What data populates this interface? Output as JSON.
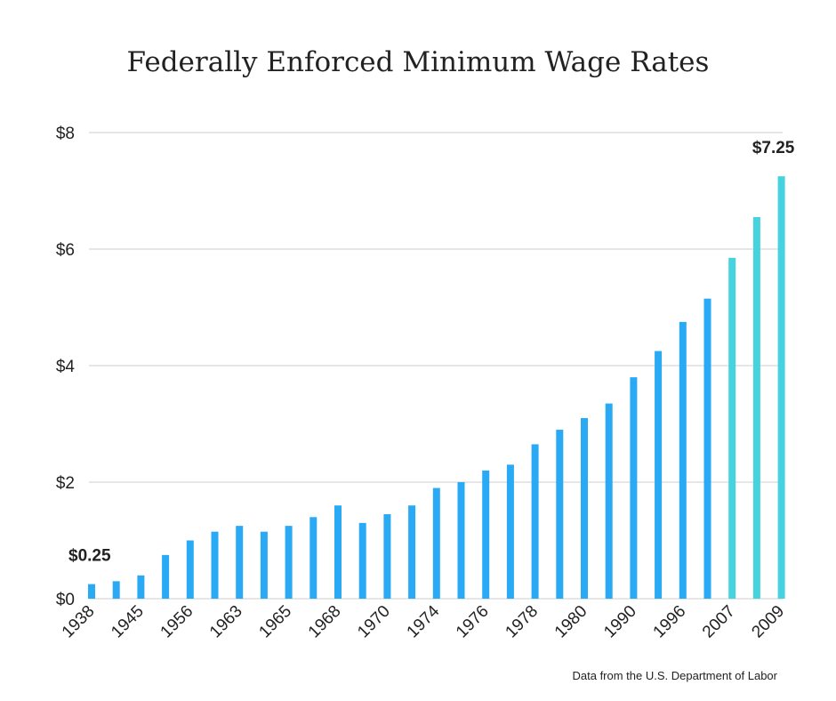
{
  "chart_data": {
    "type": "bar",
    "title": "Federally Enforced Minimum Wage Rates",
    "xlabel": "",
    "ylabel": "",
    "ylim": [
      0,
      8
    ],
    "y_ticks": [
      0,
      2,
      4,
      6,
      8
    ],
    "y_tick_labels": [
      "$0",
      "$2",
      "$4",
      "$6",
      "$8"
    ],
    "x_tick_labels": [
      "1938",
      "1945",
      "1956",
      "1963",
      "1965",
      "1968",
      "1970",
      "1974",
      "1976",
      "1978",
      "1980",
      "1990",
      "1996",
      "2007",
      "2009"
    ],
    "x_tick_every": 2,
    "values": [
      0.25,
      0.3,
      0.4,
      0.75,
      1.0,
      1.15,
      1.25,
      1.15,
      1.25,
      1.4,
      1.6,
      1.3,
      1.45,
      1.6,
      1.9,
      2.0,
      2.2,
      2.3,
      2.65,
      2.9,
      3.1,
      3.35,
      3.8,
      4.25,
      4.75,
      5.15,
      5.85,
      6.55,
      7.25
    ],
    "highlight_from_index": 26,
    "grid": true,
    "annotations": [
      {
        "index": 0,
        "text": "$0.25"
      },
      {
        "index": 28,
        "text": "$7.25"
      }
    ],
    "source": "Data from the U.S. Department of Labor",
    "colors": {
      "bar": "#2aa9f5",
      "bar_highlight": "#45d3e0",
      "grid": "#cccccc",
      "text": "#222222"
    }
  }
}
